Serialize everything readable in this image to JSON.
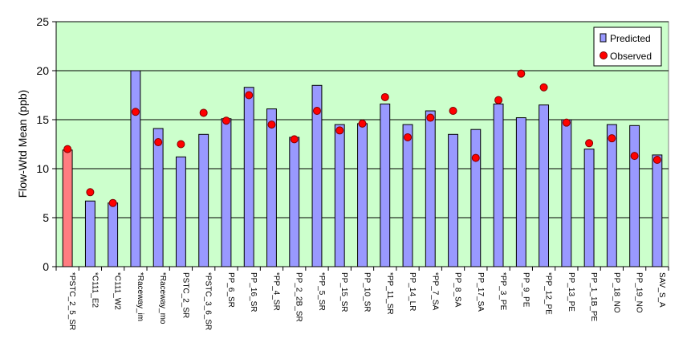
{
  "chart_data": {
    "type": "bar",
    "title": "",
    "xlabel": "",
    "ylabel": "Flow-Wtd Mean (ppb)",
    "ylim": [
      0,
      25
    ],
    "yticks": [
      0,
      5,
      10,
      15,
      20,
      25
    ],
    "grid": true,
    "legend": {
      "placement": "top-right",
      "entries": [
        "Predicted",
        "Observed"
      ]
    },
    "categories": [
      "*PSTC_2_5_SR",
      "*C111_E2",
      "*C111_W2",
      "*Raceway_im",
      "*Raceway_mo",
      "PSTC_2_SR",
      "*PSTC_3_6_SR",
      "PP_6_SR",
      "PP_16_SR",
      "*PP_4_SR",
      "PP_2_2B_SR",
      "*PP_5_SR",
      "PP_15_SR",
      "PP_10_SR",
      "*PP_11_SR",
      "PP_14_LR",
      "*PP_7_SA",
      "PP_8_SA",
      "PP_17_SA",
      "*PP_3_PE",
      "PP_9_PE",
      "*PP_12_PE",
      "PP_13_PE",
      "PP_1_1B_PE",
      "PP_18_NO",
      "PP_19_NO",
      "SAV_S_A"
    ],
    "series": [
      {
        "name": "Predicted",
        "type": "bar",
        "values": [
          11.9,
          6.7,
          6.5,
          20.0,
          14.1,
          11.2,
          13.5,
          15.1,
          18.3,
          16.1,
          13.2,
          18.5,
          14.5,
          14.6,
          16.6,
          14.5,
          15.9,
          13.5,
          14.0,
          16.6,
          15.2,
          16.5,
          15.0,
          12.0,
          14.5,
          14.4,
          11.4
        ]
      },
      {
        "name": "Observed",
        "type": "scatter",
        "values": [
          12.0,
          7.6,
          6.5,
          15.8,
          12.7,
          12.5,
          15.7,
          14.9,
          17.5,
          14.5,
          13.0,
          15.9,
          13.9,
          14.6,
          17.3,
          13.2,
          15.2,
          15.9,
          11.1,
          17.0,
          19.7,
          18.3,
          14.7,
          12.6,
          13.1,
          11.3,
          10.9
        ]
      }
    ],
    "colors": {
      "plot_background": "#ccffcc",
      "bar_fill": "#9999ff",
      "bar_highlight_fill": "#ff7c80",
      "bar_stroke": "#000000",
      "marker_fill": "#ff0000",
      "marker_stroke": "#800000",
      "gridline": "#000000"
    },
    "highlight_index": 0
  }
}
